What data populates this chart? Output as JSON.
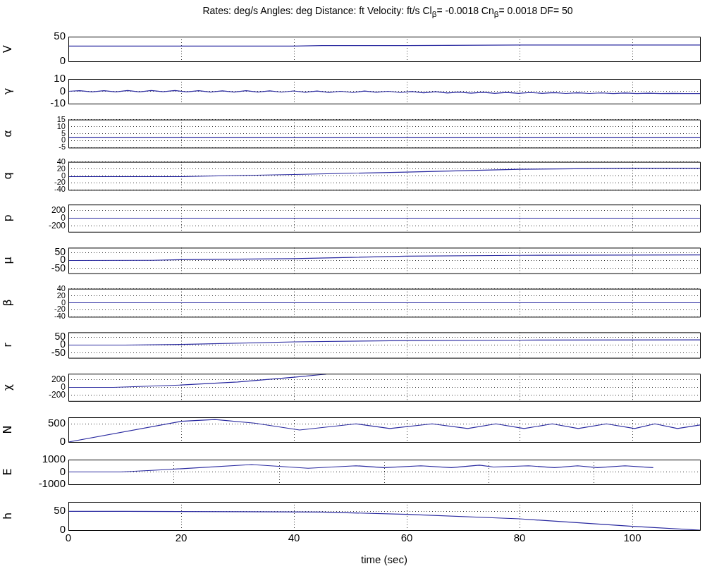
{
  "chart_data": [
    {
      "type": "line",
      "title": "Rates: deg/s  Angles: deg  Distance: ft  Velocity: ft/s  Cl$_{β}$= -0.0018  Cn$_{β}$= 0.0018  DF= 50",
      "ylabel": "V",
      "x": [
        0,
        40,
        45,
        60,
        80,
        112
      ],
      "series": [
        {
          "color": "#2a2aa0",
          "values": [
            31,
            31,
            32,
            32,
            33,
            33
          ]
        }
      ],
      "xlim": [
        0,
        112
      ],
      "xticks": [
        0,
        20,
        40,
        60,
        80,
        100
      ],
      "ylim": [
        0,
        50
      ],
      "yticks": [
        0,
        50
      ],
      "grid": "x",
      "tick_labels": "y"
    },
    {
      "type": "line",
      "ylabel": "γ",
      "x": [
        0,
        2,
        4.2,
        6.3,
        8.4,
        10.5,
        12.6,
        14.7,
        16.8,
        18.9,
        21,
        23.1,
        25.2,
        27.3,
        29.4,
        31.5,
        33.6,
        35.7,
        37.8,
        39.9,
        42,
        44.1,
        46.2,
        48.3,
        50.4,
        52.5,
        54.6,
        56.7,
        58.8,
        60.9,
        63,
        65.1,
        67.2,
        69.3,
        71.4,
        73.5,
        75.6,
        77.7,
        79.8,
        81.9,
        84,
        86.1,
        88.2,
        90.3,
        92.4,
        94.5,
        96.6,
        98.7,
        100.8,
        102.9,
        105,
        107.1,
        109.2,
        112
      ],
      "series": [
        {
          "color": "#2a2aa0",
          "values": [
            0,
            0.5,
            -0.5,
            0.5,
            -0.5,
            0.6,
            -0.5,
            0.6,
            -0.4,
            0.6,
            -0.5,
            0.5,
            -0.6,
            0.4,
            -0.6,
            0.5,
            -0.6,
            0.4,
            -0.7,
            0.3,
            -0.8,
            0.2,
            -0.9,
            0,
            -1,
            0.2,
            -0.8,
            0,
            -1,
            -0.2,
            -1.2,
            -0.4,
            -1.4,
            -0.6,
            -1.5,
            -0.8,
            -1.6,
            -0.9,
            -1.6,
            -1,
            -1.6,
            -1.1,
            -1.7,
            -1.2,
            -1.7,
            -1.3,
            -1.8,
            -1.4,
            -1.8,
            -1.5,
            -1.8,
            -1.6,
            -1.8,
            -1.8
          ]
        }
      ],
      "xlim": [
        0,
        112
      ],
      "xticks": [
        0,
        20,
        40,
        60,
        80,
        100
      ],
      "ylim": [
        -10,
        10
      ],
      "yticks": [
        -10,
        0,
        10
      ],
      "grid": true,
      "tick_labels": "y"
    },
    {
      "type": "line",
      "ylabel": "α",
      "x": [
        0,
        112
      ],
      "series": [
        {
          "color": "#2a2aa0",
          "values": [
            2,
            2
          ]
        }
      ],
      "xlim": [
        0,
        112
      ],
      "xticks": [
        0,
        20,
        40,
        60,
        80,
        100
      ],
      "ylim": [
        -5,
        15
      ],
      "yticks": [
        -5,
        0,
        5,
        10,
        15
      ],
      "grid": true,
      "tick_labels": "y"
    },
    {
      "type": "line",
      "ylabel": "q",
      "x": [
        0,
        20,
        40,
        60,
        80,
        100,
        112
      ],
      "series": [
        {
          "color": "#2a2aa0",
          "values": [
            -2,
            -2,
            4,
            11,
            19,
            22,
            22
          ]
        }
      ],
      "xlim": [
        0,
        112
      ],
      "xticks": [
        0,
        20,
        40,
        60,
        80,
        100
      ],
      "ylim": [
        -40,
        40
      ],
      "yticks": [
        -40,
        -20,
        0,
        20,
        40
      ],
      "grid": true,
      "tick_labels": "y"
    },
    {
      "type": "line",
      "ylabel": "p",
      "x": [
        0,
        112
      ],
      "series": [
        {
          "color": "#2a2aa0",
          "values": [
            0,
            0
          ]
        }
      ],
      "xlim": [
        0,
        112
      ],
      "xticks": [
        0,
        20,
        40,
        60,
        80,
        100
      ],
      "ylim": [
        -350,
        350
      ],
      "yticks": [
        -200,
        0,
        200
      ],
      "grid": true,
      "tick_labels": "y"
    },
    {
      "type": "line",
      "ylabel": "μ",
      "x": [
        0,
        15,
        20,
        40,
        60,
        80,
        112
      ],
      "series": [
        {
          "color": "#2a2aa0",
          "values": [
            0,
            1,
            5,
            12,
            27,
            32,
            35
          ]
        }
      ],
      "xlim": [
        0,
        112
      ],
      "xticks": [
        0,
        20,
        40,
        60,
        80,
        100
      ],
      "ylim": [
        -80,
        80
      ],
      "yticks": [
        -50,
        0,
        50
      ],
      "grid": true,
      "tick_labels": "y"
    },
    {
      "type": "line",
      "ylabel": "β",
      "x": [
        0,
        112
      ],
      "series": [
        {
          "color": "#2a2aa0",
          "values": [
            0,
            0
          ]
        }
      ],
      "xlim": [
        0,
        112
      ],
      "xticks": [
        0,
        20,
        40,
        60,
        80,
        100
      ],
      "ylim": [
        -40,
        40
      ],
      "yticks": [
        -40,
        -20,
        0,
        20,
        40
      ],
      "grid": true,
      "tick_labels": "y"
    },
    {
      "type": "line",
      "ylabel": "r",
      "x": [
        0,
        10,
        20,
        40,
        60,
        80,
        112
      ],
      "series": [
        {
          "color": "#2a2aa0",
          "values": [
            0,
            0,
            4,
            20,
            28,
            31,
            33
          ]
        }
      ],
      "xlim": [
        0,
        112
      ],
      "xticks": [
        0,
        20,
        40,
        60,
        80,
        100
      ],
      "ylim": [
        -80,
        80
      ],
      "yticks": [
        -50,
        0,
        50
      ],
      "grid": true,
      "tick_labels": "y"
    },
    {
      "type": "line",
      "ylabel": "χ",
      "x": [
        0,
        8,
        20,
        30,
        40,
        45.7
      ],
      "series": [
        {
          "color": "#2a2aa0",
          "values": [
            0,
            0,
            60,
            140,
            260,
            340
          ]
        }
      ],
      "xlim": [
        0,
        112
      ],
      "xticks": [
        0,
        20,
        40,
        60,
        80,
        100
      ],
      "ylim": [
        -350,
        350
      ],
      "yticks": [
        -200,
        0,
        200
      ],
      "grid": true,
      "tick_labels": "y"
    },
    {
      "type": "line",
      "ylabel": "N",
      "x": [
        0,
        20,
        26,
        33,
        41,
        51,
        57,
        64.5,
        70.8,
        75.8,
        80.8,
        85.8,
        90.4,
        95.4,
        100.4,
        104,
        108,
        112
      ],
      "series": [
        {
          "color": "#2a2aa0",
          "values": [
            0,
            570,
            620,
            520,
            330,
            500,
            370,
            500,
            370,
            500,
            370,
            500,
            370,
            500,
            370,
            500,
            370,
            470
          ]
        }
      ],
      "xlim": [
        0,
        112
      ],
      "xticks": [
        0,
        20,
        40,
        60,
        80,
        100
      ],
      "ylim": [
        0,
        680
      ],
      "yticks": [
        0,
        500
      ],
      "grid": true,
      "tick_labels": "y"
    },
    {
      "type": "line",
      "ylabel": "E",
      "x": [
        0,
        9.3,
        17.7,
        32.5,
        42.5,
        51,
        56,
        62.5,
        67.9,
        72.9,
        75.4,
        81.6,
        86.2,
        90.3,
        93.8,
        98.7,
        103.7
      ],
      "series": [
        {
          "color": "#2a2aa0",
          "values": [
            0,
            0,
            200,
            600,
            300,
            500,
            350,
            500,
            350,
            550,
            400,
            500,
            350,
            500,
            350,
            500,
            350
          ]
        }
      ],
      "xlim": [
        0,
        112
      ],
      "xticks": [
        {
          "value": 0,
          "label": null
        },
        {
          "value": 18.7,
          "label": null
        },
        {
          "value": 37.4,
          "label": null
        },
        {
          "value": 56,
          "label": null
        },
        {
          "value": 74.6,
          "label": null
        },
        {
          "value": 93.2,
          "label": null
        }
      ],
      "ylim": [
        -1000,
        1000
      ],
      "yticks": [
        -1000,
        0,
        1000
      ],
      "grid": true,
      "tick_labels": "y"
    },
    {
      "type": "line",
      "ylabel": "h",
      "xlabel": "time (sec)",
      "x": [
        0,
        10,
        30,
        45,
        60,
        80,
        100,
        112
      ],
      "series": [
        {
          "color": "#2a2aa0",
          "values": [
            50,
            50,
            49,
            48,
            42,
            30,
            10,
            0
          ]
        }
      ],
      "xlim": [
        0,
        112
      ],
      "xticks": [
        0,
        20,
        40,
        60,
        80,
        100
      ],
      "ylim": [
        0,
        75
      ],
      "yticks": [
        0,
        50
      ],
      "grid": true
    }
  ]
}
